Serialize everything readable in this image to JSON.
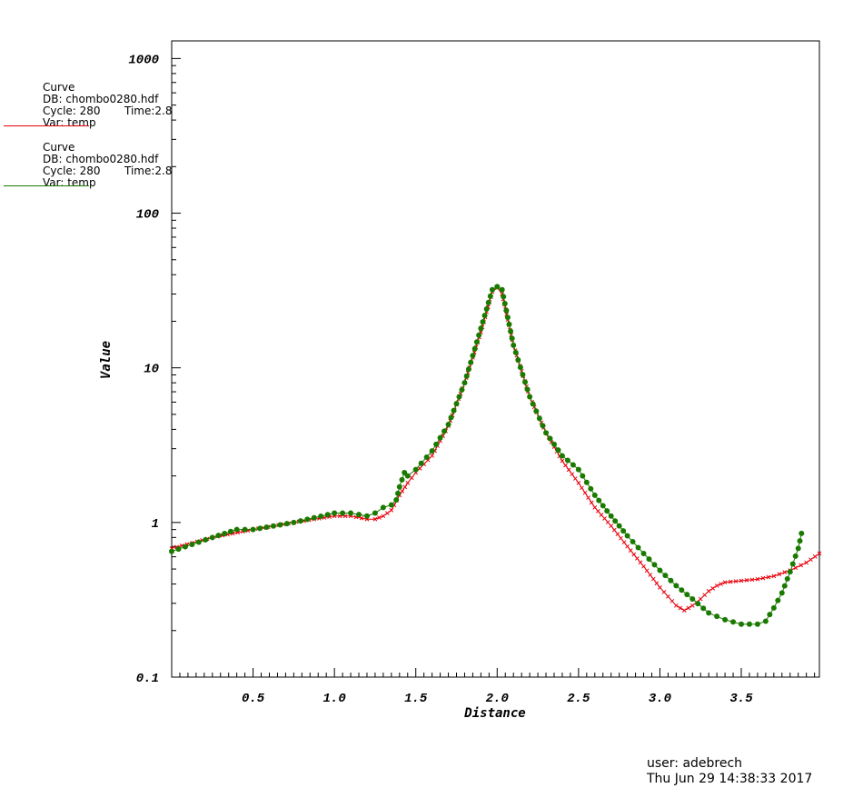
{
  "legend": [
    {
      "heading": "Curve",
      "db": "DB: chombo0280.hdf",
      "cycle": "Cycle: 280",
      "time": "Time:2.8",
      "var": "Var: temp",
      "color": "#e8000b"
    },
    {
      "heading": "Curve",
      "db": "DB: chombo0280.hdf",
      "cycle": "Cycle: 280",
      "time": "Time:2.8",
      "var": "Var: temp",
      "color": "#1a7a00"
    }
  ],
  "user_info": {
    "user": "user: adebrech",
    "timestamp": "Thu Jun 29 14:38:33 2017"
  },
  "chart_data": {
    "type": "line",
    "xlabel": "Distance",
    "ylabel": "Value",
    "y_scale": "log",
    "xlim": [
      0,
      3.98
    ],
    "ylim": [
      0.1,
      1300
    ],
    "x_ticks": [
      "0.5",
      "1.0",
      "1.5",
      "2.0",
      "2.5",
      "3.0",
      "3.5"
    ],
    "x_tick_values": [
      0.5,
      1.0,
      1.5,
      2.0,
      2.5,
      3.0,
      3.5
    ],
    "y_ticks": [
      "0.1",
      "1",
      "10",
      "100",
      "1000"
    ],
    "y_tick_values": [
      0.1,
      1,
      10,
      100,
      1000
    ],
    "series": [
      {
        "color": "#e8000b",
        "marker": "x",
        "x": [
          0.0,
          0.25,
          0.5,
          0.75,
          1.0,
          1.1,
          1.2,
          1.25,
          1.3,
          1.35,
          1.4,
          1.45,
          1.5,
          1.6,
          1.7,
          1.8,
          1.9,
          1.97,
          2.0,
          2.03,
          2.1,
          2.2,
          2.3,
          2.4,
          2.5,
          2.6,
          2.7,
          2.8,
          2.9,
          3.0,
          3.1,
          3.15,
          3.2,
          3.25,
          3.3,
          3.35,
          3.4,
          3.5,
          3.6,
          3.7,
          3.8,
          3.9,
          3.98
        ],
        "y": [
          0.68,
          0.8,
          0.9,
          1.0,
          1.1,
          1.1,
          1.05,
          1.05,
          1.1,
          1.2,
          1.5,
          1.8,
          2.1,
          2.7,
          4.2,
          8.0,
          17.0,
          31.0,
          33.0,
          30.0,
          14.0,
          6.5,
          3.8,
          2.5,
          1.8,
          1.25,
          0.95,
          0.7,
          0.52,
          0.38,
          0.29,
          0.27,
          0.29,
          0.32,
          0.36,
          0.39,
          0.41,
          0.42,
          0.43,
          0.45,
          0.49,
          0.55,
          0.63
        ]
      },
      {
        "color": "#1a7a00",
        "marker": "circle",
        "x": [
          0.0,
          0.25,
          0.4,
          0.5,
          0.75,
          1.0,
          1.1,
          1.2,
          1.25,
          1.3,
          1.35,
          1.38,
          1.4,
          1.43,
          1.45,
          1.5,
          1.6,
          1.7,
          1.8,
          1.9,
          1.97,
          2.0,
          2.03,
          2.1,
          2.2,
          2.3,
          2.4,
          2.5,
          2.6,
          2.7,
          2.8,
          2.9,
          3.0,
          3.1,
          3.2,
          3.3,
          3.4,
          3.5,
          3.55,
          3.6,
          3.65,
          3.7,
          3.75,
          3.8,
          3.85,
          3.87
        ],
        "y": [
          0.65,
          0.8,
          0.9,
          0.9,
          1.0,
          1.15,
          1.15,
          1.1,
          1.15,
          1.25,
          1.3,
          1.4,
          1.7,
          2.1,
          2.0,
          2.2,
          2.9,
          4.3,
          8.0,
          18.0,
          32.0,
          33.5,
          32.0,
          14.0,
          6.5,
          3.8,
          2.7,
          2.2,
          1.5,
          1.1,
          0.82,
          0.63,
          0.49,
          0.39,
          0.32,
          0.26,
          0.235,
          0.22,
          0.22,
          0.22,
          0.23,
          0.28,
          0.35,
          0.48,
          0.68,
          0.85
        ]
      }
    ]
  }
}
